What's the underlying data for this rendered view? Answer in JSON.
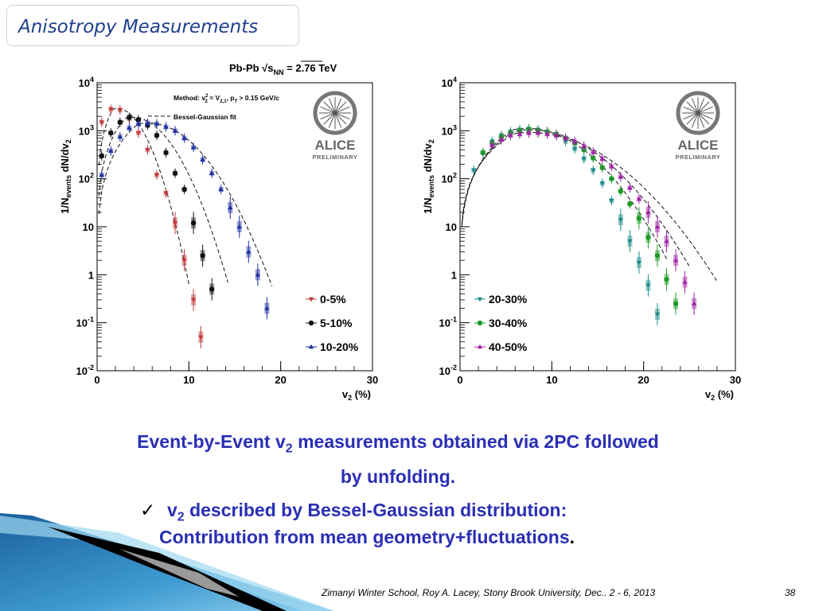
{
  "slide": {
    "title": "Anisotropy  Measurements",
    "caption_pre": "Event-by-Event v",
    "caption_sub": "2",
    "caption_post": " measurements obtained via 2PC followed",
    "caption_line2": "by unfolding.",
    "bullet_check": "✓",
    "bullet_pre": "v",
    "bullet_sub": "2",
    "bullet_post": " described by Bessel-Gaussian distribution:",
    "bullet_line2": "Contribution from mean geometry+fluctuations",
    "bullet_line2_end": ".",
    "footer": "Zimanyi Winter School, Roy A.  Lacey, Stony Brook University, Dec.. 2 - 6, 2013",
    "page_number": "38",
    "figure_header": "Pb-Pb √s",
    "figure_header_sub": "NN",
    "figure_header_post": " = 2.76 TeV",
    "method_label": "Method: v",
    "method_label_rest": " = V",
    "method_label_tail": ", p",
    "method_label_end": " > 0.15 GeV/c",
    "method_sup": "2",
    "method_sub2": "2",
    "method_sub_v": "2,1",
    "method_sub_t": "T",
    "fit_label": "Bessel-Gaussian fit",
    "logo_text": "ALICE",
    "logo_subtext": "PRELIMINARY",
    "colors": {
      "title": "#1f3f8f",
      "caption": "#2a2fb4",
      "red": "#c0383a",
      "black": "#111111",
      "blue": "#1f2f9f",
      "teal": "#1a8a8a",
      "green": "#1f9b2a",
      "magenta": "#a023a5"
    }
  },
  "chart_data": [
    {
      "type": "scatter",
      "title": "",
      "xlabel_main": "v",
      "xlabel_sub": "2",
      "xlabel_unit": " (%)",
      "ylabel_pre": "1/N",
      "ylabel_sub": "events",
      "ylabel_post": " dN/dv",
      "ylabel_sub2": "2",
      "xlim": [
        0,
        30
      ],
      "ylim": [
        0.01,
        10000
      ],
      "log_y": true,
      "x_ticks": [
        "0",
        "10",
        "20",
        "30"
      ],
      "y_ticks": [
        {
          "base": "10",
          "exp": "-2",
          "v": 0.01
        },
        {
          "base": "10",
          "exp": "-1",
          "v": 0.1
        },
        {
          "base": "1",
          "exp": "",
          "v": 1
        },
        {
          "base": "10",
          "exp": "",
          "v": 10
        },
        {
          "base": "10",
          "exp": "2",
          "v": 100
        },
        {
          "base": "10",
          "exp": "3",
          "v": 1000
        },
        {
          "base": "10",
          "exp": "4",
          "v": 10000
        }
      ],
      "legend_position": "bottom-right",
      "series": [
        {
          "name": "0-5%",
          "color": "#c0383a",
          "marker": "triangle-down",
          "points": [
            [
              0.5,
              1500
            ],
            [
              1.5,
              2800
            ],
            [
              2.5,
              2700
            ],
            [
              3.5,
              1800
            ],
            [
              4.5,
              900
            ],
            [
              5.5,
              400
            ],
            [
              6.5,
              120
            ],
            [
              7.5,
              50
            ],
            [
              8.5,
              12
            ],
            [
              9.5,
              2
            ],
            [
              10.5,
              0.3
            ],
            [
              11.3,
              0.05
            ]
          ],
          "fit": {
            "mu": 2.2,
            "sigma": 1.9,
            "peak": 2900,
            "min_x": 0.2,
            "max_x": 10.1
          }
        },
        {
          "name": "5-10%",
          "color": "#111111",
          "marker": "circle",
          "points": [
            [
              0.5,
              300
            ],
            [
              1.5,
              900
            ],
            [
              2.5,
              1500
            ],
            [
              3.5,
              1900
            ],
            [
              4.5,
              1700
            ],
            [
              5.5,
              1300
            ],
            [
              6.5,
              800
            ],
            [
              7.5,
              350
            ],
            [
              8.5,
              130
            ],
            [
              9.5,
              60
            ],
            [
              10.5,
              12
            ],
            [
              11.5,
              2.5
            ],
            [
              12.5,
              0.5
            ]
          ],
          "fit": {
            "mu": 3.9,
            "sigma": 2.6,
            "peak": 1900,
            "min_x": 0.2,
            "max_x": 14.3
          }
        },
        {
          "name": "10-20%",
          "color": "#1f2f9f",
          "marker": "triangle-up",
          "points": [
            [
              0.5,
              120
            ],
            [
              1.5,
              380
            ],
            [
              2.5,
              750
            ],
            [
              3.5,
              1150
            ],
            [
              4.5,
              1400
            ],
            [
              5.5,
              1450
            ],
            [
              6.5,
              1400
            ],
            [
              7.5,
              1200
            ],
            [
              8.5,
              1000
            ],
            [
              9.5,
              700
            ],
            [
              10.5,
              450
            ],
            [
              11.5,
              250
            ],
            [
              12.5,
              130
            ],
            [
              13.5,
              60
            ],
            [
              14.5,
              25
            ],
            [
              15.5,
              10
            ],
            [
              16.5,
              3
            ],
            [
              17.5,
              1
            ],
            [
              18.5,
              0.2
            ]
          ],
          "fit": {
            "mu": 5.6,
            "sigma": 3.4,
            "peak": 1450,
            "min_x": 0.2,
            "max_x": 19.1
          }
        }
      ]
    },
    {
      "type": "scatter",
      "title": "",
      "xlabel_main": "v",
      "xlabel_sub": "2",
      "xlabel_unit": " (%)",
      "ylabel_pre": "1/N",
      "ylabel_sub": "events",
      "ylabel_post": " dN/dv",
      "ylabel_sub2": "2",
      "xlim": [
        0,
        30
      ],
      "ylim": [
        0.01,
        10000
      ],
      "log_y": true,
      "x_ticks": [
        "0",
        "10",
        "20",
        "30"
      ],
      "y_ticks": [
        {
          "base": "10",
          "exp": "-2",
          "v": 0.01
        },
        {
          "base": "10",
          "exp": "-1",
          "v": 0.1
        },
        {
          "base": "1",
          "exp": "",
          "v": 1
        },
        {
          "base": "10",
          "exp": "",
          "v": 10
        },
        {
          "base": "10",
          "exp": "2",
          "v": 100
        },
        {
          "base": "10",
          "exp": "3",
          "v": 1000
        },
        {
          "base": "10",
          "exp": "4",
          "v": 10000
        }
      ],
      "legend_position": "bottom-left",
      "series": [
        {
          "name": "20-30%",
          "color": "#1a8a8a",
          "marker": "triangle-down",
          "points": [
            [
              1.5,
              150
            ],
            [
              2.5,
              350
            ],
            [
              3.5,
              600
            ],
            [
              4.5,
              800
            ],
            [
              5.5,
              950
            ],
            [
              6.5,
              1050
            ],
            [
              7.5,
              1100
            ],
            [
              8.5,
              1050
            ],
            [
              9.5,
              950
            ],
            [
              10.5,
              800
            ],
            [
              11.5,
              600
            ],
            [
              12.5,
              420
            ],
            [
              13.5,
              260
            ],
            [
              14.5,
              150
            ],
            [
              15.5,
              80
            ],
            [
              16.5,
              35
            ],
            [
              17.5,
              14
            ],
            [
              18.5,
              5
            ],
            [
              19.5,
              1.8
            ],
            [
              20.5,
              0.6
            ],
            [
              21.5,
              0.15
            ]
          ],
          "fit": {
            "mu": 7.3,
            "sigma": 4.3,
            "peak": 1120,
            "min_x": 0.2,
            "max_x": 22.6
          }
        },
        {
          "name": "30-40%",
          "color": "#1f9b2a",
          "marker": "circle",
          "points": [
            [
              2.5,
              350
            ],
            [
              3.5,
              550
            ],
            [
              4.5,
              750
            ],
            [
              5.5,
              900
            ],
            [
              6.5,
              1000
            ],
            [
              7.5,
              1050
            ],
            [
              8.5,
              1000
            ],
            [
              9.5,
              950
            ],
            [
              10.5,
              850
            ],
            [
              11.5,
              700
            ],
            [
              12.5,
              550
            ],
            [
              13.5,
              400
            ],
            [
              14.5,
              270
            ],
            [
              15.5,
              170
            ],
            [
              16.5,
              100
            ],
            [
              17.5,
              55
            ],
            [
              18.5,
              30
            ],
            [
              19.5,
              15
            ],
            [
              20.5,
              6
            ],
            [
              21.5,
              2.5
            ],
            [
              22.5,
              0.8
            ],
            [
              23.5,
              0.25
            ]
          ],
          "fit": {
            "mu": 7.6,
            "sigma": 4.8,
            "peak": 1050,
            "min_x": 0.2,
            "max_x": 25.0
          }
        },
        {
          "name": "40-50%",
          "color": "#a023a5",
          "marker": "triangle-up",
          "points": [
            [
              3.5,
              500
            ],
            [
              4.5,
              650
            ],
            [
              5.5,
              800
            ],
            [
              6.5,
              850
            ],
            [
              7.5,
              900
            ],
            [
              8.5,
              900
            ],
            [
              9.5,
              850
            ],
            [
              10.5,
              800
            ],
            [
              11.5,
              700
            ],
            [
              12.5,
              600
            ],
            [
              13.5,
              480
            ],
            [
              14.5,
              360
            ],
            [
              15.5,
              260
            ],
            [
              16.5,
              180
            ],
            [
              17.5,
              110
            ],
            [
              18.5,
              65
            ],
            [
              19.5,
              38
            ],
            [
              20.5,
              20
            ],
            [
              21.5,
              10
            ],
            [
              22.5,
              5
            ],
            [
              23.5,
              2
            ],
            [
              24.5,
              0.7
            ],
            [
              25.5,
              0.25
            ]
          ],
          "fit": {
            "mu": 7.6,
            "sigma": 5.4,
            "peak": 920,
            "min_x": 0.2,
            "max_x": 28.0
          }
        }
      ]
    }
  ]
}
